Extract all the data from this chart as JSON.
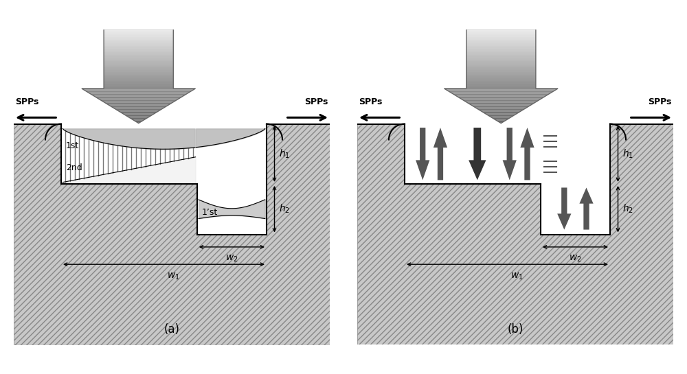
{
  "bg_color": "#ffffff",
  "metal_face": "#c8c8c8",
  "metal_hatch": "////",
  "metal_edge": "#888888",
  "panel_a_label": "(a)",
  "panel_b_label": "(b)",
  "spps_label": "SPPs",
  "label_1st": "1st",
  "label_2nd": "2nd",
  "label_1pst": "1’st",
  "groove_white": "#ffffff",
  "mode1_fill": "#b8b8b8",
  "mode2_fill": "#e0e0e0",
  "wave_fill": "#aaaaaa",
  "arrow_body_fill": "#b0b0b0",
  "arrow_tip_fill": "#888888",
  "dark_arrow_col1": "#555555",
  "dark_arrow_col2": "#333333",
  "dim_arrow_col": "#000000"
}
